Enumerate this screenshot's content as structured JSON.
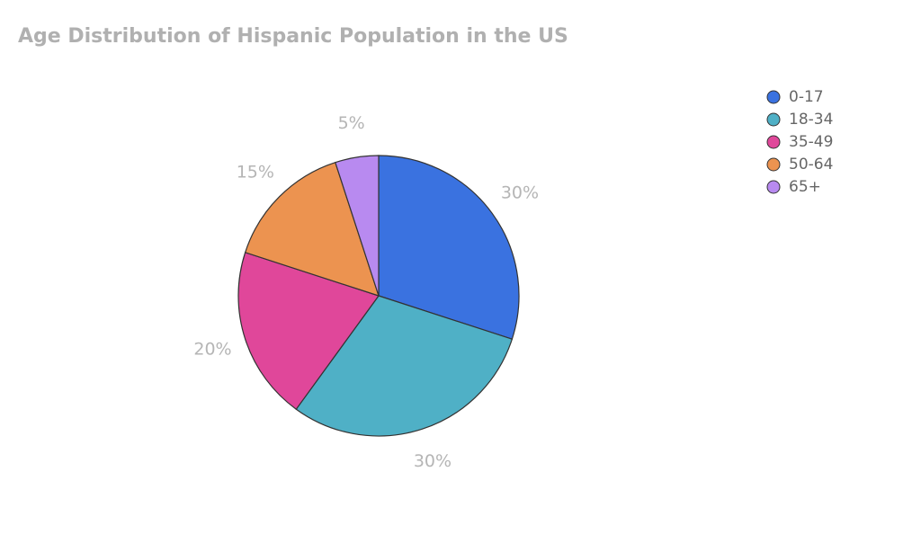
{
  "chart_data": {
    "type": "pie",
    "title": "Age Distribution of Hispanic Population in the US",
    "categories": [
      "0-17",
      "18-34",
      "35-49",
      "50-64",
      "65+"
    ],
    "values": [
      30,
      30,
      20,
      15,
      5
    ],
    "value_labels": [
      "30%",
      "30%",
      "20%",
      "15%",
      "5%"
    ],
    "colors": [
      "#3a72e0",
      "#4fb0c6",
      "#e0479a",
      "#ec9350",
      "#b88af0"
    ],
    "legend": "right"
  }
}
